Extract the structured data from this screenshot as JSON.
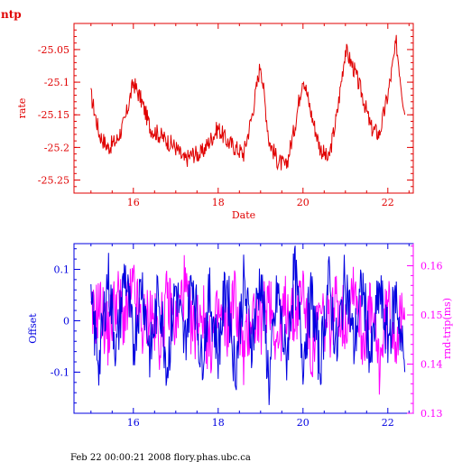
{
  "page_title": "ntp",
  "footer": "Feb 22 00:00:21 2008 flory.phas.ubc.ca",
  "chart_data": [
    {
      "type": "line",
      "title": "",
      "xlabel": "Date",
      "ylabel": "rate",
      "xlim": [
        14.6,
        22.6
      ],
      "ylim": [
        -25.27,
        -25.01
      ],
      "x_ticks": [
        16,
        18,
        20,
        22
      ],
      "y_ticks": [
        -25.25,
        -25.2,
        -25.15,
        -25.1,
        -25.05
      ],
      "x_tick_labels": [
        "16",
        "18",
        "20",
        "22"
      ],
      "y_tick_labels": [
        "-25.25",
        "-25.2",
        "-25.15",
        "-25.1",
        "-25.05"
      ],
      "color": "#e00000",
      "series": [
        {
          "x": [
            15.0,
            15.2,
            15.4,
            15.6,
            15.8,
            16.0,
            16.2,
            16.4,
            16.6,
            16.8,
            17.0,
            17.2,
            17.4,
            17.6,
            17.8,
            18.0,
            18.2,
            18.4,
            18.6,
            18.8,
            19.0,
            19.2,
            19.4,
            19.6,
            19.8,
            20.0,
            20.2,
            20.4,
            20.6,
            20.8,
            21.0,
            21.2,
            21.4,
            21.6,
            21.8,
            22.0,
            22.2,
            22.4
          ],
          "values": [
            -25.12,
            -25.18,
            -25.2,
            -25.19,
            -25.16,
            -25.1,
            -25.13,
            -25.17,
            -25.18,
            -25.19,
            -25.2,
            -25.22,
            -25.21,
            -25.21,
            -25.19,
            -25.17,
            -25.19,
            -25.2,
            -25.21,
            -25.15,
            -25.07,
            -25.19,
            -25.22,
            -25.23,
            -25.17,
            -25.09,
            -25.15,
            -25.2,
            -25.22,
            -25.15,
            -25.05,
            -25.08,
            -25.12,
            -25.17,
            -25.18,
            -25.12,
            -25.04,
            -25.15
          ]
        }
      ]
    },
    {
      "type": "line",
      "title": "",
      "xlabel": "",
      "ylabel": "Offset",
      "y2label": "rnd-trip(ms)",
      "xlim": [
        14.6,
        22.6
      ],
      "ylim": [
        -0.18,
        0.15
      ],
      "y2lim": [
        0.13,
        0.1645
      ],
      "x_ticks": [
        16,
        18,
        20,
        22
      ],
      "y_ticks": [
        -0.1,
        0,
        0.1
      ],
      "y2_ticks": [
        0.13,
        0.14,
        0.15,
        0.16
      ],
      "x_tick_labels": [
        "16",
        "18",
        "20",
        "22"
      ],
      "y_tick_labels": [
        "-0.1",
        "0",
        "0.1"
      ],
      "y2_tick_labels": [
        "0.13",
        "0.14",
        "0.15",
        "0.16"
      ],
      "series": [
        {
          "axis": "left",
          "color": "#0000e0",
          "x": [
            15.0,
            15.2,
            15.4,
            15.6,
            15.8,
            16.0,
            16.2,
            16.4,
            16.6,
            16.8,
            17.0,
            17.2,
            17.4,
            17.6,
            17.8,
            18.0,
            18.2,
            18.4,
            18.6,
            18.8,
            19.0,
            19.2,
            19.4,
            19.6,
            19.8,
            20.0,
            20.2,
            20.4,
            20.6,
            20.8,
            21.0,
            21.2,
            21.4,
            21.6,
            21.8,
            22.0,
            22.2,
            22.4
          ],
          "values": [
            0.02,
            -0.08,
            0.09,
            -0.06,
            0.1,
            -0.05,
            0.08,
            -0.07,
            0.06,
            -0.09,
            0.07,
            -0.05,
            0.09,
            -0.08,
            0.05,
            -0.06,
            0.08,
            -0.1,
            0.07,
            -0.04,
            0.09,
            -0.12,
            0.06,
            -0.08,
            0.1,
            -0.07,
            0.05,
            -0.09,
            0.08,
            -0.06,
            0.09,
            -0.05,
            0.07,
            -0.08,
            0.06,
            -0.04,
            0.05,
            -0.1
          ]
        },
        {
          "axis": "right",
          "color": "#ff00ff",
          "x": [
            15.0,
            15.2,
            15.4,
            15.6,
            15.8,
            16.0,
            16.2,
            16.4,
            16.6,
            16.8,
            17.0,
            17.2,
            17.4,
            17.6,
            17.8,
            18.0,
            18.2,
            18.4,
            18.6,
            18.8,
            19.0,
            19.2,
            19.4,
            19.6,
            19.8,
            20.0,
            20.2,
            20.4,
            20.6,
            20.8,
            21.0,
            21.2,
            21.4,
            21.6,
            21.8,
            22.0,
            22.2,
            22.4
          ],
          "values": [
            0.148,
            0.152,
            0.146,
            0.154,
            0.149,
            0.155,
            0.147,
            0.151,
            0.145,
            0.153,
            0.148,
            0.156,
            0.146,
            0.152,
            0.143,
            0.15,
            0.147,
            0.154,
            0.141,
            0.151,
            0.148,
            0.155,
            0.144,
            0.152,
            0.149,
            0.156,
            0.142,
            0.15,
            0.147,
            0.153,
            0.148,
            0.158,
            0.145,
            0.151,
            0.14,
            0.152,
            0.146,
            0.149
          ]
        }
      ]
    }
  ]
}
